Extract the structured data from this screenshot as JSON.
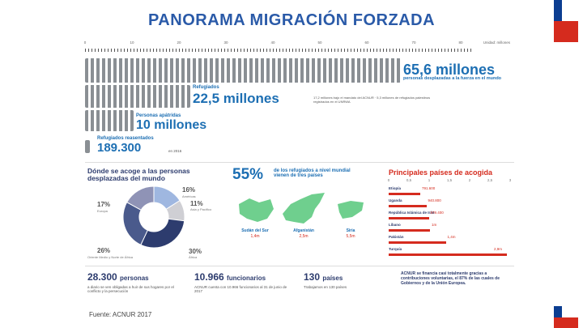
{
  "title": "PANORAMA MIGRACIÓN FORZADA",
  "source_note": "Fuente: ACNUR 2017",
  "ruler": {
    "ticks": [
      "0",
      "10",
      "20",
      "30",
      "40",
      "50",
      "60",
      "70",
      "80"
    ],
    "unit": "Unidad: millones"
  },
  "headline": {
    "value": "65,6 millones",
    "text": "personas desplazadas a la fuerza en el mundo"
  },
  "refugees": {
    "label": "Refugiados",
    "value": "22,5 millones",
    "note": "17,2 millones bajo el mandato del ACNUR · 5,3 millones de refugiados palestinos registrados en el UNRWA"
  },
  "stateless": {
    "label": "Personas apátridas",
    "value": "10 millones"
  },
  "resettled": {
    "label": "Refugiados reasentados",
    "value": "189.300",
    "note": "en 2016"
  },
  "hosting": {
    "title": "Dónde se acoge a las personas desplazadas del mundo",
    "slices": [
      {
        "pct": "16%",
        "region": "Américas"
      },
      {
        "pct": "11%",
        "region": "Asia y Pacífico"
      },
      {
        "pct": "30%",
        "region": "África"
      },
      {
        "pct": "26%",
        "region": "Oriente Medio y Norte de África"
      },
      {
        "pct": "17%",
        "region": "Europa"
      }
    ]
  },
  "origin": {
    "pct": "55%",
    "text": "de los refugiados a nivel mundial vienen de tres países",
    "countries": [
      {
        "name": "Sudán del Sur",
        "value": "1,4m"
      },
      {
        "name": "Afganistán",
        "value": "2,5m"
      },
      {
        "name": "Siria",
        "value": "5,5m"
      }
    ]
  },
  "host_countries": {
    "title": "Principales países de acogida",
    "scale": [
      "0",
      "0,5",
      "1",
      "1,5",
      "2",
      "2,5",
      "3"
    ],
    "items": [
      {
        "name": "Etiopía",
        "value": "791.600",
        "fraction": 0.26
      },
      {
        "name": "Uganda",
        "value": "940.800",
        "fraction": 0.31
      },
      {
        "name": "República Islámica de Irán",
        "value": "979.400",
        "fraction": 0.33
      },
      {
        "name": "Líbano",
        "value": "1m",
        "fraction": 0.34
      },
      {
        "name": "Pakistán",
        "value": "1,4m",
        "fraction": 0.47
      },
      {
        "name": "Turquía",
        "value": "2,9m",
        "fraction": 0.97
      }
    ]
  },
  "boxes": [
    {
      "number": "28.300",
      "unit": "personas",
      "text": "a diario se ven obligadas a huir de sus hogares por el conflicto y la persecución"
    },
    {
      "number": "10.966",
      "unit": "funcionarios",
      "text": "ACNUR cuenta con 10.966 funcionarios al 31 de junio de 2017"
    },
    {
      "number": "130",
      "unit": "países",
      "text": "Trabajamos en 130 países"
    },
    {
      "number": "",
      "unit": "",
      "text": "ACNUR se financia casi totalmente gracias a contribuciones voluntarias, el 87% de las cuales de Gobiernos y de la Unión Europea."
    }
  ],
  "colors": {
    "blue": "#1d6fb3",
    "navy": "#2d3c6e",
    "red": "#d52b1e",
    "flag_blue": "#0b3d91"
  }
}
